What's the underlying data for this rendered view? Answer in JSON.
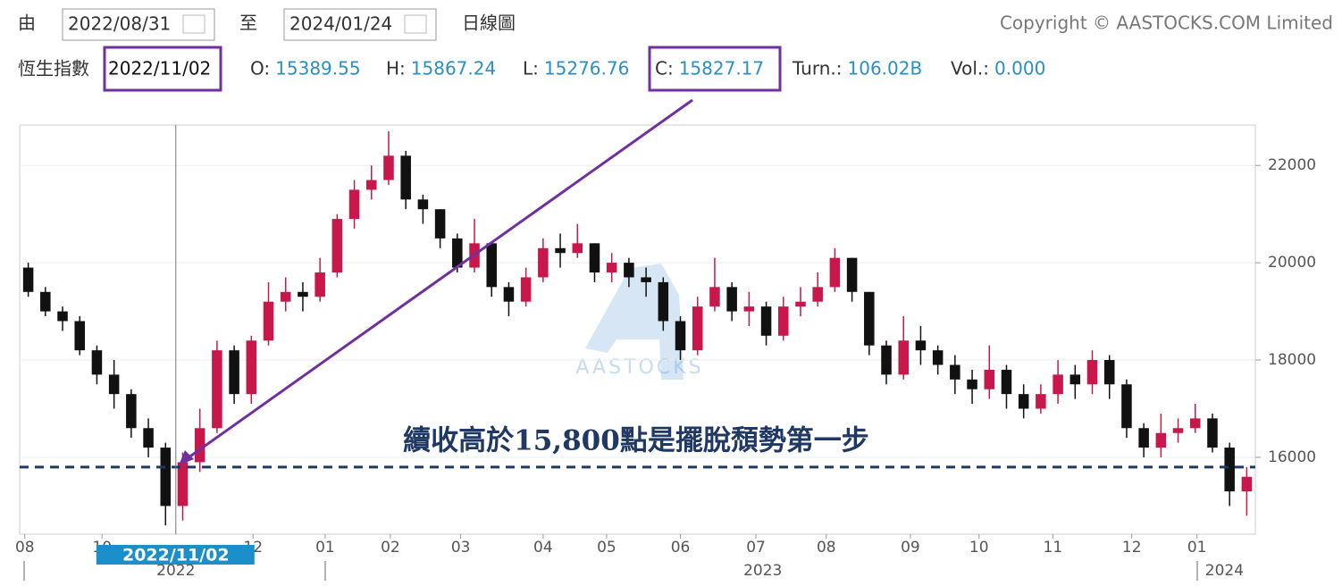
{
  "header": {
    "from_label": "由",
    "from_date": "2022/08/31",
    "to_label": "至",
    "to_date": "2024/01/24",
    "chart_kind": "日線圖",
    "copyright": "Copyright © AASTOCKS.COM Limited",
    "index_name": "恆生指數",
    "date": "2022/11/02",
    "fields": [
      {
        "label": "O:",
        "value": "15389.55"
      },
      {
        "label": "H:",
        "value": "15867.24"
      },
      {
        "label": "L:",
        "value": "15276.76"
      },
      {
        "label": "C:",
        "value": "15827.17"
      },
      {
        "label": "Turn.:",
        "value": "106.02B"
      },
      {
        "label": "Vol.:",
        "value": "0.000"
      }
    ]
  },
  "chart_data": {
    "type": "candlestick",
    "up_color": "#c8174a",
    "down_color": "#111111",
    "categories": [
      null,
      null,
      null,
      null,
      null,
      null,
      null,
      null,
      null,
      null,
      null,
      null,
      null,
      null,
      null,
      null,
      null,
      null,
      null,
      null,
      null,
      null,
      null,
      null,
      null,
      null,
      null,
      null,
      null,
      null,
      null,
      null,
      null,
      null,
      null,
      null,
      null,
      null,
      null,
      null,
      null,
      null,
      null,
      null,
      null,
      null,
      null,
      null,
      null,
      null,
      null,
      null,
      null,
      null,
      null,
      null,
      null,
      null,
      null,
      null,
      null,
      null,
      null,
      null,
      null,
      null,
      null,
      null,
      null,
      null,
      null,
      null
    ],
    "open": [
      19900,
      19400,
      19000,
      18800,
      18200,
      17700,
      17300,
      16600,
      16200,
      15000,
      15900,
      16600,
      18200,
      17300,
      18400,
      19200,
      19400,
      19300,
      19800,
      20900,
      21500,
      21700,
      22200,
      21300,
      21100,
      20500,
      19900,
      20400,
      19500,
      19200,
      19700,
      20300,
      20200,
      20400,
      19800,
      20000,
      19700,
      19600,
      18800,
      18200,
      19100,
      19500,
      19000,
      19100,
      18500,
      19100,
      19200,
      19500,
      20100,
      19400,
      18300,
      17700,
      18400,
      18200,
      17900,
      17600,
      17400,
      17800,
      17300,
      17000,
      17300,
      17700,
      17500,
      18000,
      17500,
      16600,
      16200,
      16500,
      16600,
      16800,
      16200,
      15300
    ],
    "high": [
      20000,
      19500,
      19100,
      18900,
      18300,
      18000,
      17400,
      16800,
      16300,
      16100,
      17000,
      18400,
      18300,
      18500,
      19600,
      19700,
      19600,
      20100,
      21000,
      21700,
      22000,
      22700,
      22300,
      21400,
      21100,
      20600,
      20900,
      20400,
      19600,
      19900,
      20500,
      20600,
      20800,
      20400,
      20200,
      20100,
      19900,
      19700,
      18900,
      19300,
      20100,
      19600,
      19400,
      19200,
      19300,
      19500,
      19800,
      20300,
      20100,
      19400,
      18400,
      18900,
      18700,
      18300,
      18100,
      17800,
      18300,
      17900,
      17500,
      17500,
      18000,
      17900,
      18200,
      18100,
      17600,
      16700,
      16900,
      16800,
      17100,
      16900,
      16300,
      15800
    ],
    "low": [
      19300,
      18900,
      18600,
      18100,
      17500,
      17000,
      16400,
      16000,
      14600,
      14700,
      15700,
      16500,
      17100,
      17100,
      18300,
      19000,
      19000,
      19200,
      19700,
      20700,
      21300,
      21600,
      21100,
      20800,
      20300,
      19800,
      19800,
      19300,
      18900,
      19100,
      19600,
      19900,
      20100,
      19600,
      19600,
      19500,
      19300,
      18600,
      18000,
      18100,
      19000,
      18800,
      18700,
      18300,
      18400,
      18900,
      19100,
      19400,
      19200,
      18100,
      17500,
      17600,
      17900,
      17700,
      17300,
      17100,
      17200,
      17000,
      16800,
      16900,
      17100,
      17200,
      17300,
      17200,
      16400,
      16000,
      16000,
      16300,
      16500,
      16100,
      15000,
      14800
    ],
    "close": [
      19400,
      19000,
      18800,
      18200,
      17700,
      17300,
      16600,
      16200,
      15000,
      15900,
      16600,
      18200,
      17300,
      18400,
      19200,
      19400,
      19300,
      19800,
      20900,
      21500,
      21700,
      22200,
      21300,
      21100,
      20500,
      19900,
      20400,
      19500,
      19200,
      19700,
      20300,
      20200,
      20400,
      19800,
      20000,
      19700,
      19600,
      18800,
      18200,
      19100,
      19500,
      19000,
      19100,
      18500,
      19100,
      19200,
      19500,
      20100,
      19400,
      18300,
      17700,
      18400,
      18200,
      17900,
      17600,
      17400,
      17800,
      17300,
      17000,
      17300,
      17700,
      17500,
      18000,
      17500,
      16600,
      16200,
      16500,
      16600,
      16800,
      16200,
      15300,
      15600
    ],
    "xlim": [
      -0.5,
      71.5
    ],
    "xticks": [
      {
        "value": -0.2,
        "label": "08"
      },
      {
        "value": 4.3,
        "label": "10"
      },
      {
        "value": 13.1,
        "label": "12"
      },
      {
        "value": 17.3,
        "label": "01"
      },
      {
        "value": 21.1,
        "label": "02"
      },
      {
        "value": 25.2,
        "label": "03"
      },
      {
        "value": 30.0,
        "label": "04"
      },
      {
        "value": 33.7,
        "label": "05"
      },
      {
        "value": 38.0,
        "label": "06"
      },
      {
        "value": 42.4,
        "label": "07"
      },
      {
        "value": 46.5,
        "label": "08"
      },
      {
        "value": 51.4,
        "label": "09"
      },
      {
        "value": 55.4,
        "label": "10"
      },
      {
        "value": 59.7,
        "label": "11"
      },
      {
        "value": 64.3,
        "label": "12"
      },
      {
        "value": 68.1,
        "label": "01"
      }
    ],
    "year_ticks": [
      {
        "value": 8.6,
        "label": "2022"
      },
      {
        "value": 42.8,
        "label": "2023"
      },
      {
        "value": 69.7,
        "label": "2024"
      }
    ],
    "ylim": [
      14420,
      22830
    ],
    "yticks": [
      16000,
      18000,
      20000,
      22000
    ],
    "crosshair": {
      "x": 8.6,
      "label": "2022/11/02"
    },
    "reference_line": {
      "value": 15800,
      "color": "#1f3864"
    },
    "annotation": "續收高於15,800點是擺脫頹勢第一步",
    "watermark": "AASTOCKS"
  }
}
